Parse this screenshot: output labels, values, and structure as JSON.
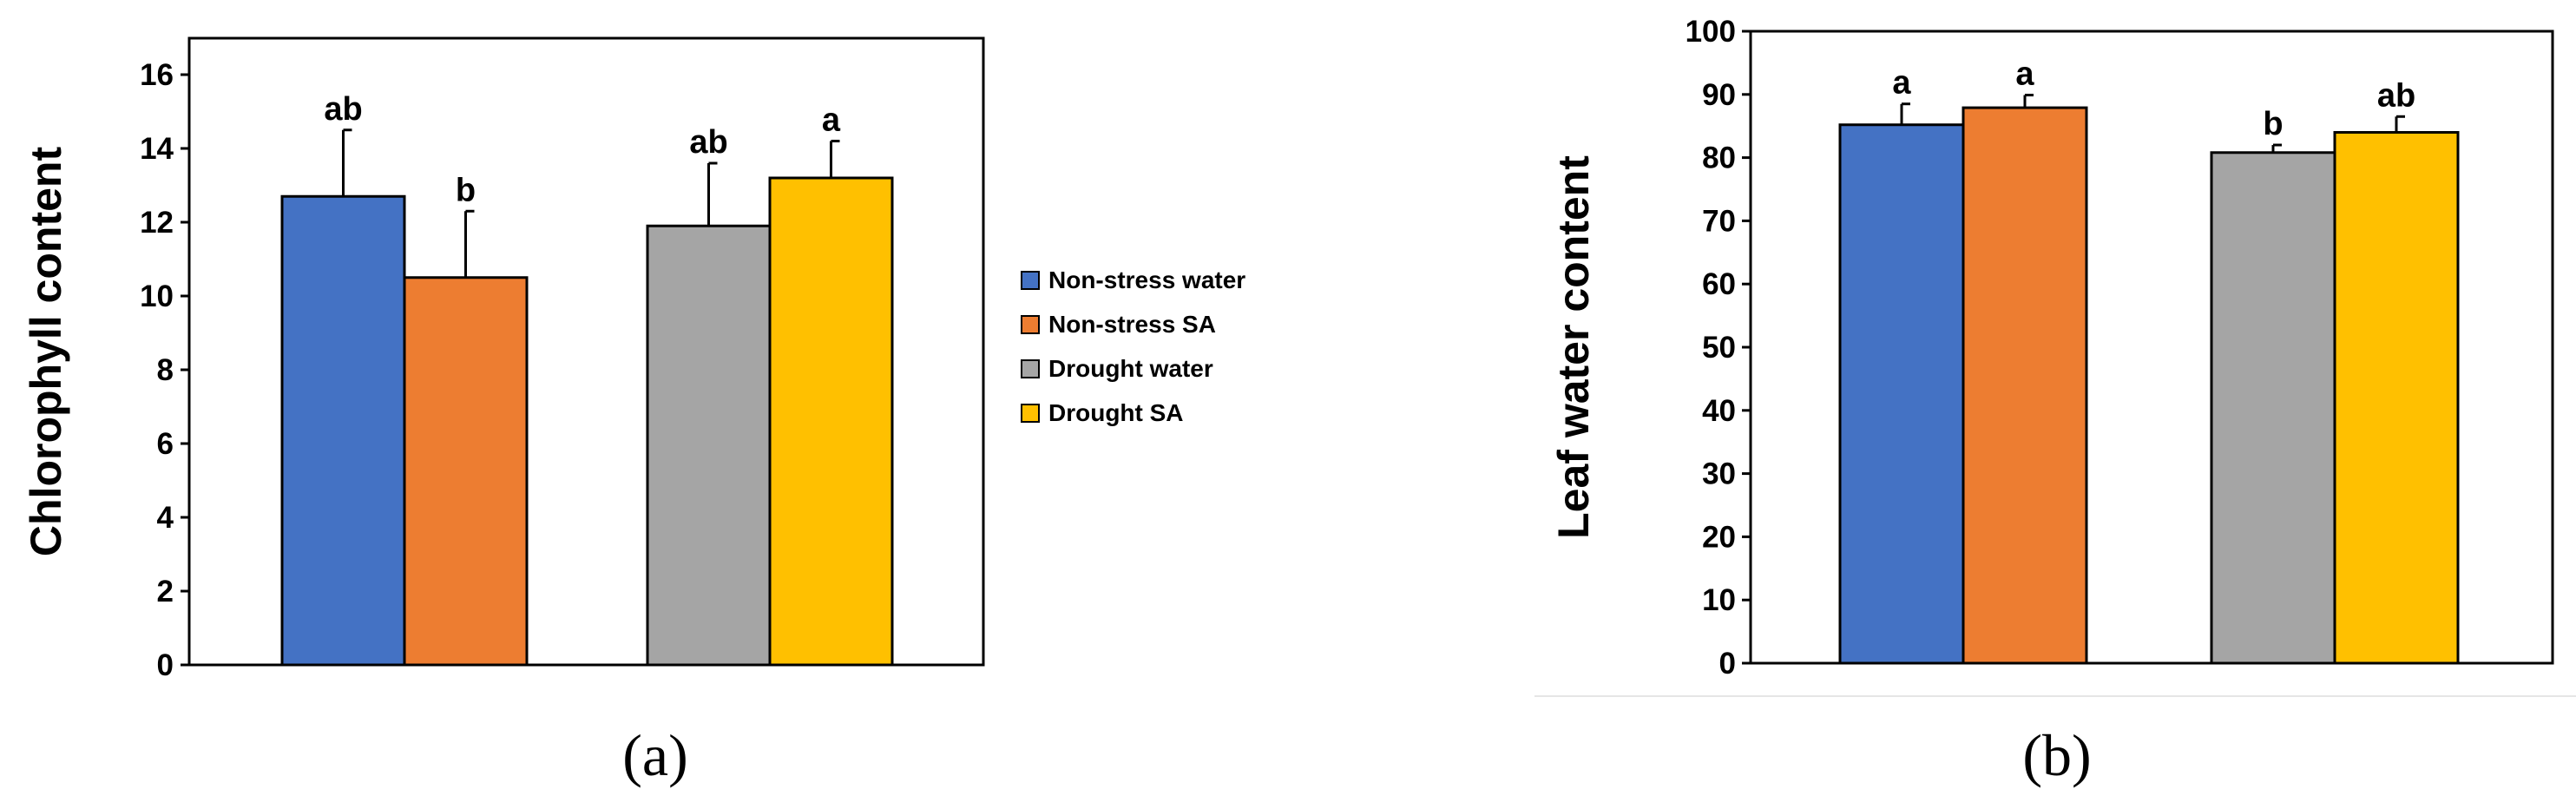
{
  "chart_data": [
    {
      "type": "bar",
      "panel": "(a)",
      "ylabel": "Chlorophyll content",
      "ylim": [
        0,
        16
      ],
      "yticks": [
        0,
        2,
        4,
        6,
        8,
        10,
        12,
        14,
        16
      ],
      "grid": false,
      "groups": [
        {
          "series": "Non-stress water",
          "value": 12.7,
          "error": 1.8,
          "letter": "ab"
        },
        {
          "series": "Non-stress SA",
          "value": 10.5,
          "error": 1.8,
          "letter": "b"
        },
        {
          "series": "Drought water",
          "value": 11.9,
          "error": 1.7,
          "letter": "ab"
        },
        {
          "series": "Drought SA",
          "value": 13.2,
          "error": 1.0,
          "letter": "a"
        }
      ]
    },
    {
      "type": "bar",
      "panel": "(b)",
      "ylabel": "Leaf water content",
      "ylim": [
        0,
        100
      ],
      "yticks": [
        0,
        10,
        20,
        30,
        40,
        50,
        60,
        70,
        80,
        90,
        100
      ],
      "grid": false,
      "groups": [
        {
          "series": "Non-stress water",
          "value": 85.2,
          "error": 3.3,
          "letter": "a"
        },
        {
          "series": "Non-stress SA",
          "value": 87.9,
          "error": 2.0,
          "letter": "a"
        },
        {
          "series": "Drought water",
          "value": 80.8,
          "error": 1.2,
          "letter": "b"
        },
        {
          "series": "Drought SA",
          "value": 84.0,
          "error": 2.5,
          "letter": "ab"
        }
      ]
    }
  ],
  "legend": {
    "placement": "between panels",
    "items": [
      {
        "label": "Non-stress water",
        "color": "#4472C4"
      },
      {
        "label": "Non-stress SA",
        "color": "#ED7D31"
      },
      {
        "label": "Drought water",
        "color": "#A5A5A5"
      },
      {
        "label": "Drought SA",
        "color": "#FFC000"
      }
    ]
  }
}
